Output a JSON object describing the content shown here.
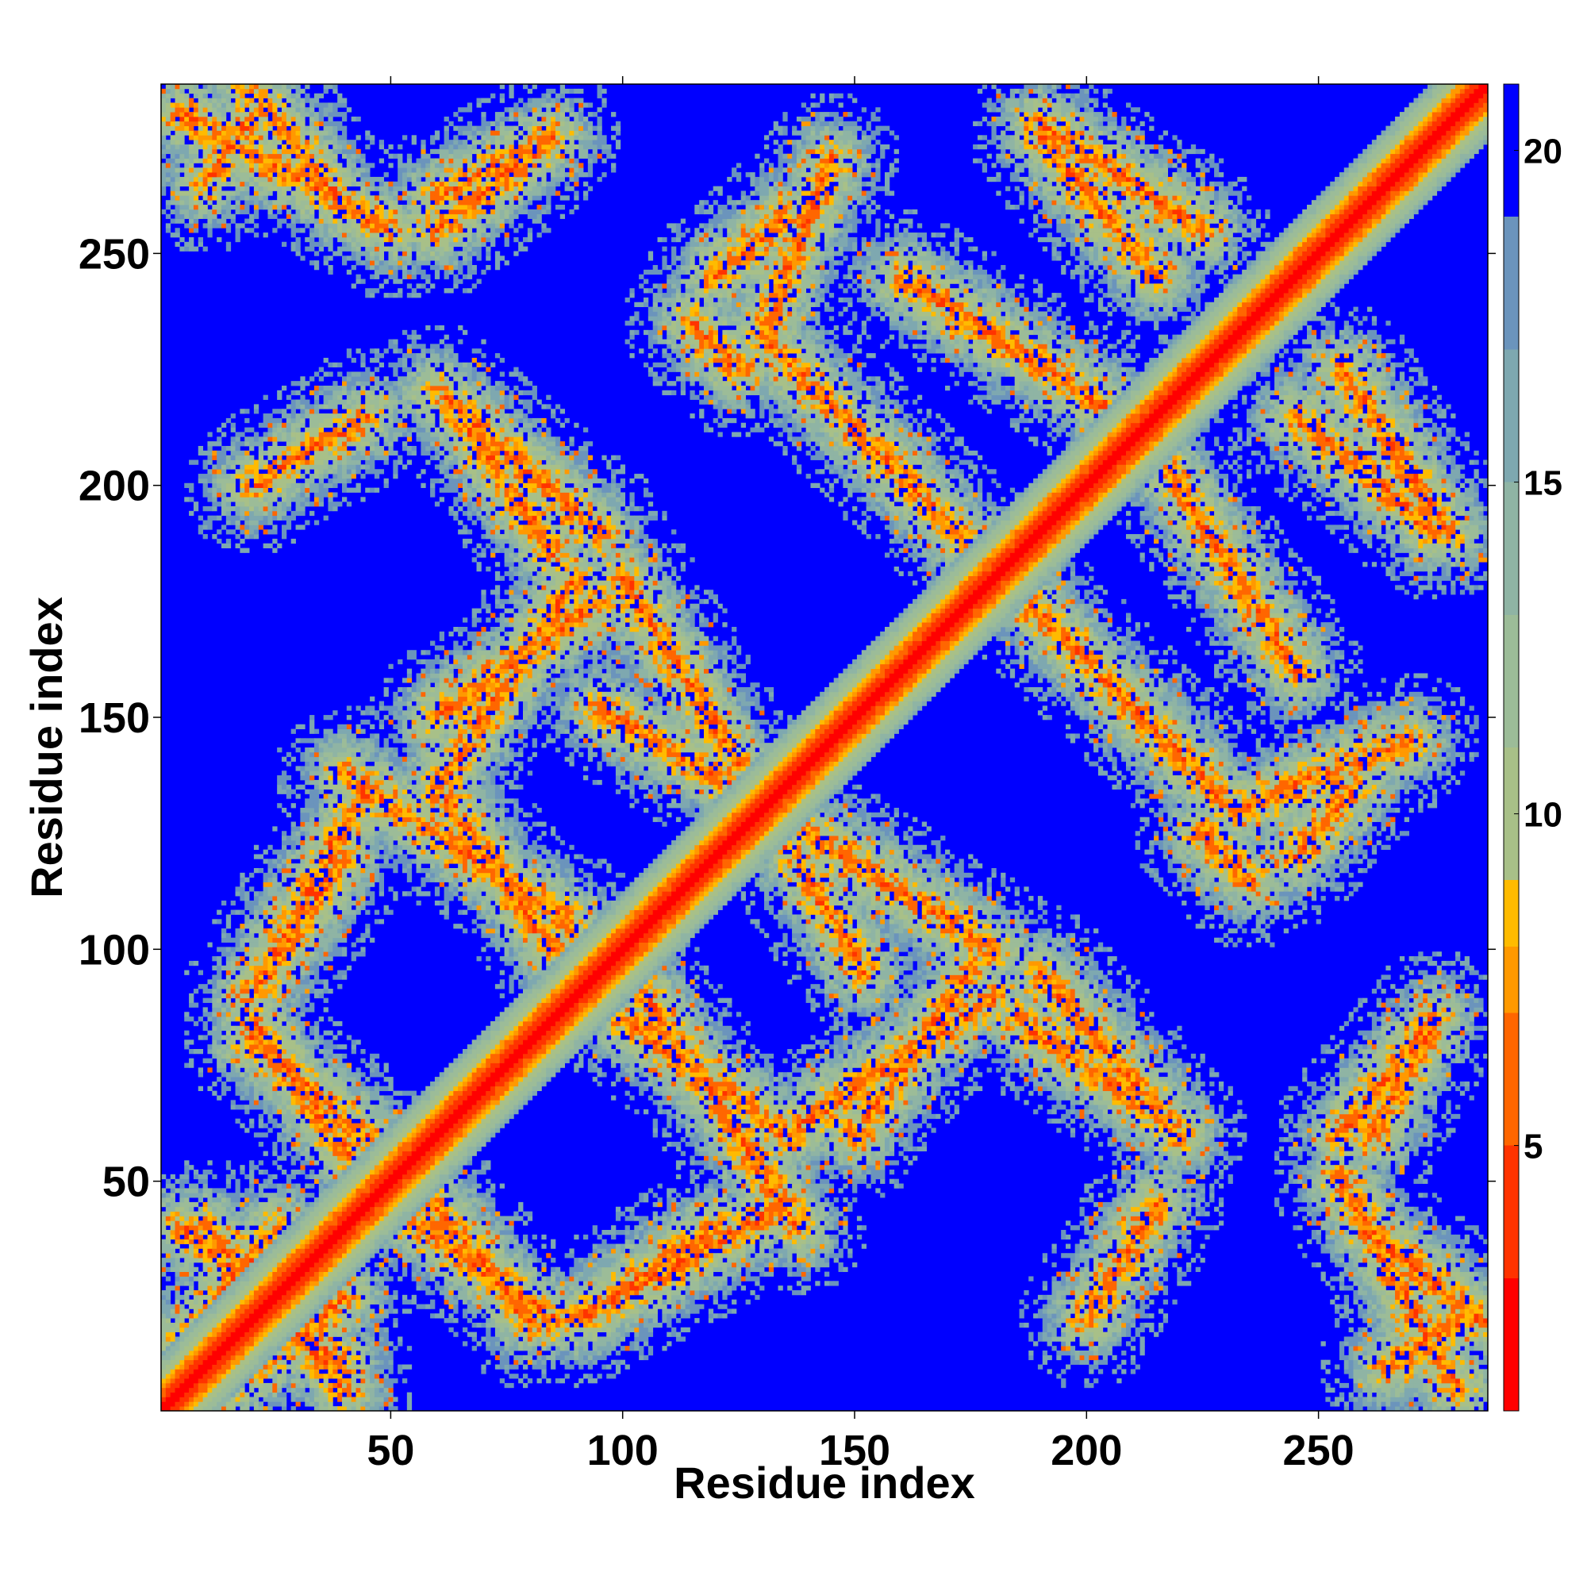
{
  "chart_data": {
    "type": "heatmap",
    "title": "",
    "xlabel": "Residue index",
    "ylabel": "Residue index",
    "n_residues": 286,
    "xlim": [
      1,
      286
    ],
    "ylim": [
      1,
      286
    ],
    "x_ticks": [
      50,
      100,
      150,
      200,
      250
    ],
    "y_ticks": [
      50,
      100,
      150,
      200,
      250
    ],
    "colorbar": {
      "range": [
        1,
        21
      ],
      "ticks": [
        5,
        10,
        15,
        20
      ],
      "colors": [
        "#ff0000",
        "#ff3300",
        "#ff6600",
        "#ff9900",
        "#ffbb00",
        "#a8c088",
        "#9cbc98",
        "#8fb4a4",
        "#7ea8b0",
        "#6b94bc",
        "#0000ff"
      ],
      "color_stops": [
        1,
        3,
        5,
        7,
        8,
        9,
        11,
        13,
        15,
        17,
        19,
        21
      ]
    },
    "contact_bands": [
      {
        "x": [
          160,
          215
        ],
        "y": [
          245,
          210
        ]
      },
      {
        "x": [
          182,
          230
        ],
        "y": [
          180,
          132
        ]
      },
      {
        "x": [
          232,
          270
        ],
        "y": [
          130,
          145
        ]
      },
      {
        "x": [
          95,
          140
        ],
        "y": [
          152,
          125
        ]
      },
      {
        "x": [
          140,
          180
        ],
        "y": [
          125,
          100
        ]
      },
      {
        "x": [
          40,
          90
        ],
        "y": [
          138,
          105
        ]
      },
      {
        "x": [
          60,
          95
        ],
        "y": [
          150,
          175
        ]
      },
      {
        "x": [
          120,
          135
        ],
        "y": [
          245,
          258
        ]
      },
      {
        "x": [
          115,
          125
        ],
        "y": [
          235,
          225
        ]
      },
      {
        "x": [
          5,
          50
        ],
        "y": [
          280,
          255
        ]
      },
      {
        "x": [
          60,
          85
        ],
        "y": [
          262,
          275
        ]
      },
      {
        "x": [
          190,
          225
        ],
        "y": [
          278,
          255
        ]
      },
      {
        "x": [
          245,
          275
        ],
        "y": [
          215,
          190
        ]
      },
      {
        "x": [
          20,
          45
        ],
        "y": [
          200,
          215
        ]
      },
      {
        "x": [
          60,
          95
        ],
        "y": [
          220,
          190
        ]
      },
      {
        "x": [
          20,
          45
        ],
        "y": [
          90,
          135
        ]
      },
      {
        "x": [
          20,
          50
        ],
        "y": [
          80,
          55
        ]
      },
      {
        "x": [
          5,
          40
        ],
        "y": [
          40,
          10
        ]
      },
      {
        "x": [
          50,
          85
        ],
        "y": [
          45,
          20
        ]
      },
      {
        "x": [
          90,
          120
        ],
        "y": [
          20,
          40
        ]
      },
      {
        "x": [
          100,
          135
        ],
        "y": [
          85,
          60
        ]
      },
      {
        "x": [
          135,
          180
        ],
        "y": [
          60,
          90
        ]
      },
      {
        "x": [
          185,
          215
        ],
        "y": [
          85,
          65
        ]
      },
      {
        "x": [
          260,
          285
        ],
        "y": [
          40,
          20
        ]
      },
      {
        "x": [
          265,
          280
        ],
        "y": [
          10,
          20
        ]
      },
      {
        "x": [
          255,
          275
        ],
        "y": [
          60,
          85
        ]
      },
      {
        "x": [
          15,
          40
        ],
        "y": [
          5,
          25
        ]
      }
    ]
  }
}
